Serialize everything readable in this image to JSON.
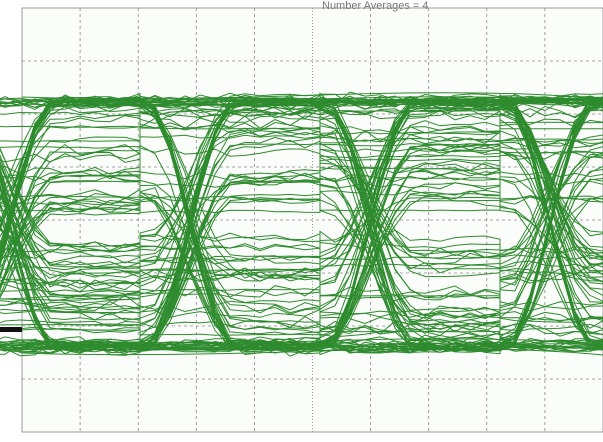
{
  "header": {
    "label": "Number Averages = 4"
  }
}
